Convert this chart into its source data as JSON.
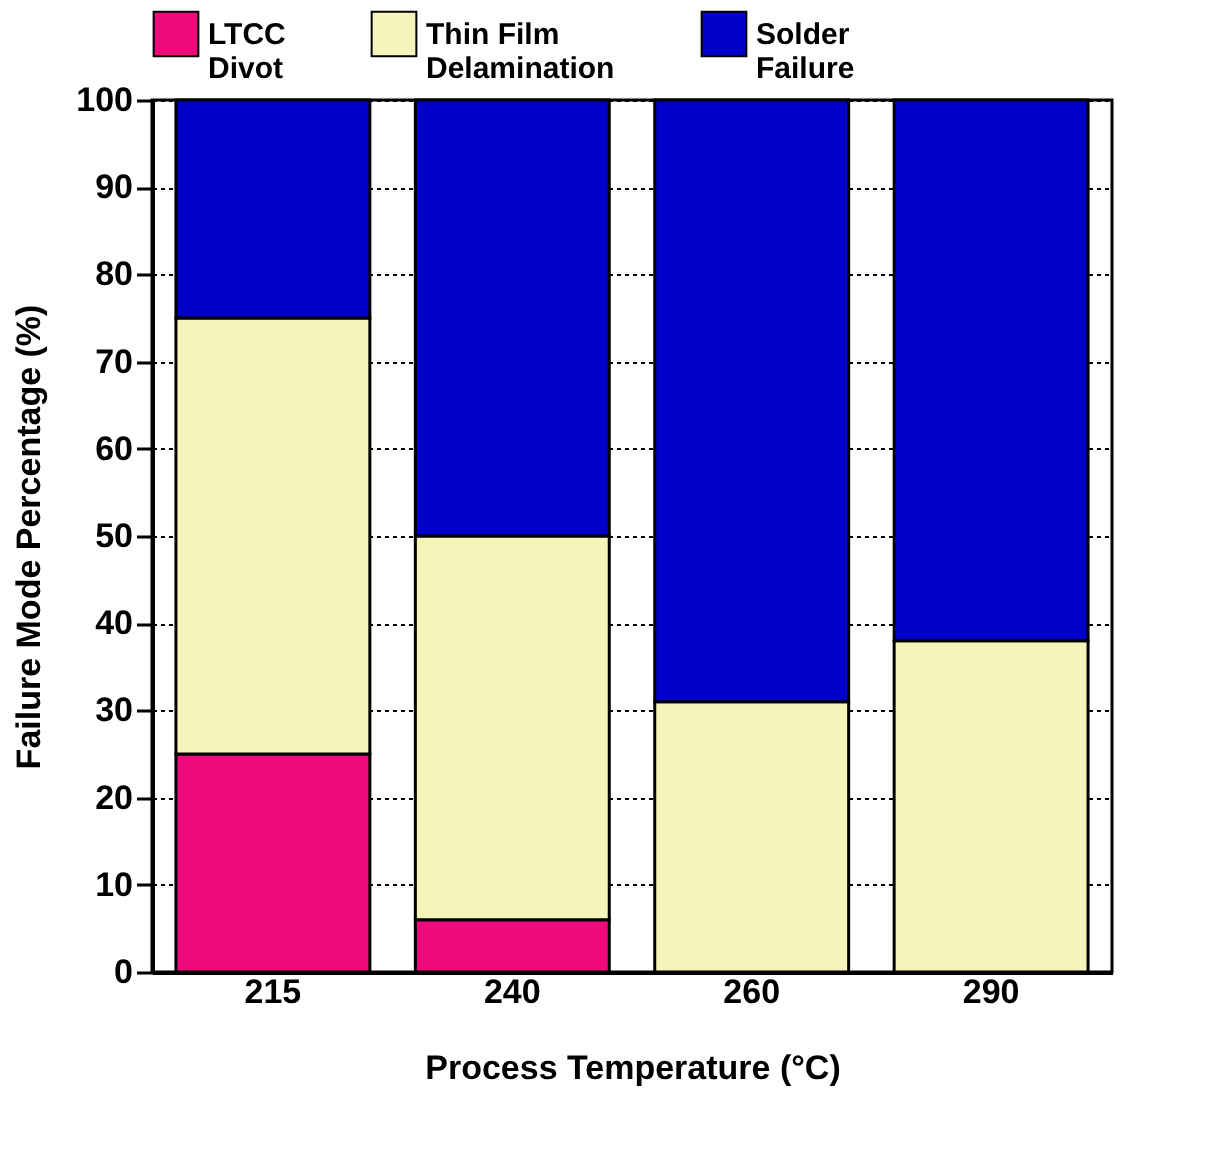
{
  "chart_data": {
    "type": "bar",
    "stacked": true,
    "xlabel": "Process Temperature (°C)",
    "ylabel": "Failure Mode Percentage  (%)",
    "categories": [
      "215",
      "240",
      "260",
      "290"
    ],
    "series": [
      {
        "name": "LTCC Divot",
        "color": "#ee0a7a",
        "values": [
          25,
          6,
          0,
          0
        ]
      },
      {
        "name": "Thin Film Delamination",
        "color": "#f5f5bb",
        "values": [
          50,
          44,
          31,
          38
        ]
      },
      {
        "name": "Solder Failure",
        "color": "#0000c8",
        "values": [
          25,
          50,
          69,
          62
        ]
      }
    ],
    "ylim": [
      0,
      100
    ],
    "yticks": [
      0,
      10,
      20,
      30,
      40,
      50,
      60,
      70,
      80,
      90,
      100
    ],
    "grid": "y",
    "legend": "top"
  }
}
